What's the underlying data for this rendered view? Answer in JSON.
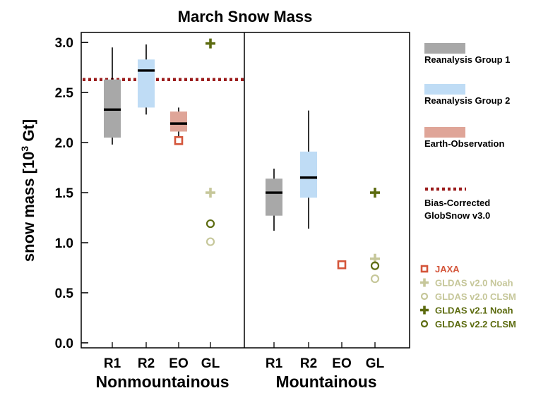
{
  "chart_data": {
    "type": "box",
    "title": "March Snow Mass",
    "ylabel_main": "snow mass [10",
    "ylabel_sup": "3",
    "ylabel_end": " Gt]",
    "ylim": [
      -0.05,
      3.1
    ],
    "yticks": [
      "0.0",
      "0.5",
      "1.0",
      "1.5",
      "2.0",
      "2.5",
      "3.0"
    ],
    "ytick_values": [
      0.0,
      0.5,
      1.0,
      1.5,
      2.0,
      2.5,
      3.0
    ],
    "groups": [
      {
        "label": "Nonmountainous",
        "categories": [
          "R1",
          "R2",
          "EO",
          "GL"
        ]
      },
      {
        "label": "Mountainous",
        "categories": [
          "R1",
          "R2",
          "EO",
          "GL"
        ]
      }
    ],
    "reference_line": {
      "name": "Bias-Corrected GlobSnow v3.0",
      "value": 2.63,
      "color": "#9b1c1c"
    },
    "boxes": [
      {
        "group": 0,
        "cat": 0,
        "series": "Reanalysis Group 1",
        "color": "#a8a8a8",
        "whisker_low": 1.98,
        "q1": 2.05,
        "median": 2.33,
        "q3": 2.63,
        "whisker_high": 2.95
      },
      {
        "group": 0,
        "cat": 1,
        "series": "Reanalysis Group 2",
        "color": "#bfdcf5",
        "whisker_low": 2.28,
        "q1": 2.35,
        "median": 2.72,
        "q3": 2.83,
        "whisker_high": 2.98
      },
      {
        "group": 0,
        "cat": 2,
        "series": "Earth-Observation",
        "color": "#dfa598",
        "whisker_low": 2.06,
        "q1": 2.11,
        "median": 2.19,
        "q3": 2.31,
        "whisker_high": 2.35
      },
      {
        "group": 1,
        "cat": 0,
        "series": "Reanalysis Group 1",
        "color": "#a8a8a8",
        "whisker_low": 1.12,
        "q1": 1.27,
        "median": 1.5,
        "q3": 1.64,
        "whisker_high": 1.74
      },
      {
        "group": 1,
        "cat": 1,
        "series": "Reanalysis Group 2",
        "color": "#bfdcf5",
        "whisker_low": 1.14,
        "q1": 1.45,
        "median": 1.65,
        "q3": 1.91,
        "whisker_high": 2.32
      }
    ],
    "points": [
      {
        "group": 0,
        "cat": 2,
        "series": "JAXA",
        "marker": "square",
        "color": "#d4553a",
        "value": 2.02
      },
      {
        "group": 0,
        "cat": 3,
        "series": "GLDAS v2.1 Noah",
        "marker": "plus",
        "color": "#5c6b0f",
        "value": 2.99
      },
      {
        "group": 0,
        "cat": 3,
        "series": "GLDAS v2.0 Noah",
        "marker": "plus",
        "color": "#c6c79a",
        "value": 1.5
      },
      {
        "group": 0,
        "cat": 3,
        "series": "GLDAS v2.2 CLSM",
        "marker": "circle",
        "color": "#5c6b0f",
        "value": 1.19
      },
      {
        "group": 0,
        "cat": 3,
        "series": "GLDAS v2.0 CLSM",
        "marker": "circle",
        "color": "#c6c79a",
        "value": 1.01
      },
      {
        "group": 1,
        "cat": 2,
        "series": "JAXA",
        "marker": "square",
        "color": "#d4553a",
        "value": 0.78
      },
      {
        "group": 1,
        "cat": 3,
        "series": "GLDAS v2.1 Noah",
        "marker": "plus",
        "color": "#5c6b0f",
        "value": 1.5
      },
      {
        "group": 1,
        "cat": 3,
        "series": "GLDAS v2.0 Noah",
        "marker": "plus",
        "color": "#c6c79a",
        "value": 0.84
      },
      {
        "group": 1,
        "cat": 3,
        "series": "GLDAS v2.2 CLSM",
        "marker": "circle",
        "color": "#5c6b0f",
        "value": 0.77
      },
      {
        "group": 1,
        "cat": 3,
        "series": "GLDAS v2.0 CLSM",
        "marker": "circle",
        "color": "#c6c79a",
        "value": 0.64
      }
    ],
    "legend_boxes": [
      {
        "label": "Reanalysis Group 1",
        "color": "#a8a8a8"
      },
      {
        "label": "Reanalysis Group 2",
        "color": "#bfdcf5"
      },
      {
        "label": "Earth-Observation",
        "color": "#dfa598"
      }
    ],
    "legend_line": {
      "line1": "Bias-Corrected",
      "line2": "GlobSnow v3.0",
      "color": "#9b1c1c"
    },
    "legend_markers": [
      {
        "label": "JAXA",
        "marker": "square",
        "color": "#d4553a"
      },
      {
        "label": "GLDAS v2.0 Noah",
        "marker": "plus",
        "color": "#c6c79a"
      },
      {
        "label": "GLDAS v2.0 CLSM",
        "marker": "circle",
        "color": "#c6c79a"
      },
      {
        "label": "GLDAS v2.1 Noah",
        "marker": "plus",
        "color": "#5c6b0f"
      },
      {
        "label": "GLDAS v2.2 CLSM",
        "marker": "circle",
        "color": "#5c6b0f"
      }
    ]
  }
}
